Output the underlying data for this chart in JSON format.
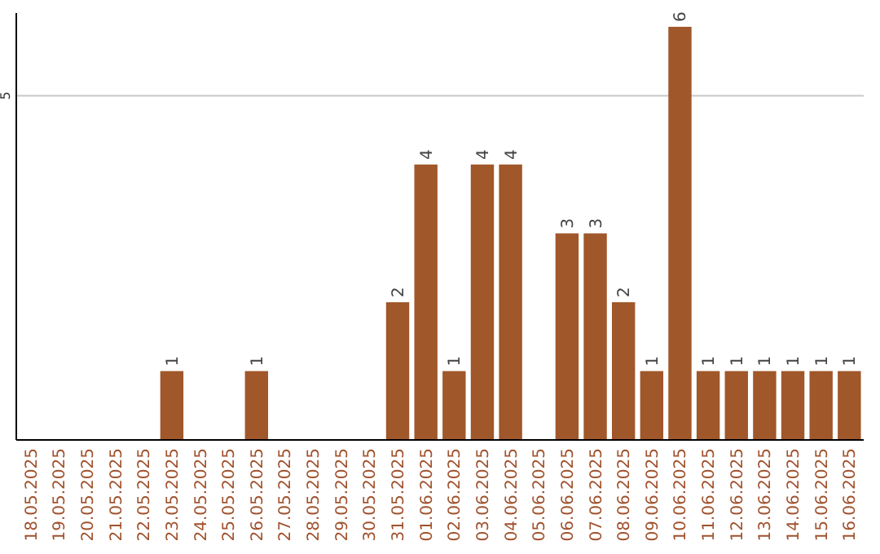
{
  "chart_data": {
    "type": "bar",
    "categories": [
      "18.05.2025",
      "19.05.2025",
      "20.05.2025",
      "21.05.2025",
      "22.05.2025",
      "23.05.2025",
      "24.05.2025",
      "25.05.2025",
      "26.05.2025",
      "27.05.2025",
      "28.05.2025",
      "29.05.2025",
      "30.05.2025",
      "31.05.2025",
      "01.06.2025",
      "02.06.2025",
      "03.06.2025",
      "04.06.2025",
      "05.06.2025",
      "06.06.2025",
      "07.06.2025",
      "08.06.2025",
      "09.06.2025",
      "10.06.2025",
      "11.06.2025",
      "12.06.2025",
      "13.06.2025",
      "14.06.2025",
      "15.06.2025",
      "16.06.2025"
    ],
    "values": [
      0,
      0,
      0,
      0,
      0,
      1,
      0,
      0,
      1,
      0,
      0,
      0,
      0,
      2,
      4,
      1,
      4,
      4,
      0,
      3,
      3,
      2,
      1,
      6,
      1,
      1,
      1,
      1,
      1,
      1
    ],
    "value_labels": [
      null,
      null,
      null,
      null,
      null,
      "1",
      null,
      null,
      "1",
      null,
      null,
      null,
      null,
      "2",
      "4",
      "1",
      "4",
      "4",
      null,
      "3",
      "3",
      "2",
      "1",
      "6",
      "1",
      "1",
      "1",
      "1",
      "1",
      "1"
    ],
    "color": "#a0572a",
    "ylim": [
      0,
      6.2
    ],
    "yticks": [
      5
    ],
    "grid": "y"
  }
}
